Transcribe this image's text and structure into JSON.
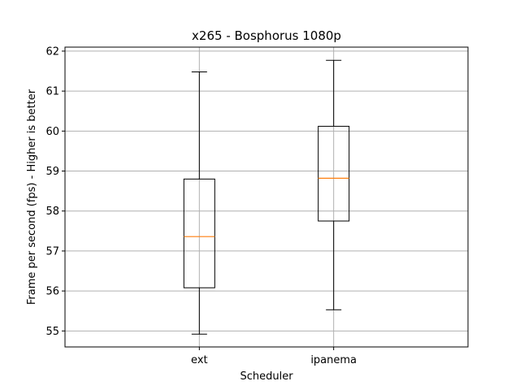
{
  "chart_data": {
    "type": "box",
    "title": "x265 - Bosphorus 1080p",
    "xlabel": "Scheduler",
    "ylabel": "Frame per second (fps) - Higher is better",
    "ylim": [
      54.6,
      62.1
    ],
    "yticks": [
      55,
      56,
      57,
      58,
      59,
      60,
      61,
      62
    ],
    "grid": true,
    "categories": [
      "ext",
      "ipanema"
    ],
    "boxes": [
      {
        "category": "ext",
        "whisker_low": 54.92,
        "q1": 56.08,
        "median": 57.36,
        "q3": 58.8,
        "whisker_high": 61.48
      },
      {
        "category": "ipanema",
        "whisker_low": 55.53,
        "q1": 57.75,
        "median": 58.82,
        "q3": 60.12,
        "whisker_high": 61.77
      }
    ],
    "colors": {
      "box": "#000000",
      "median": "#ff7f0e",
      "grid": "#b0b0b0"
    }
  }
}
